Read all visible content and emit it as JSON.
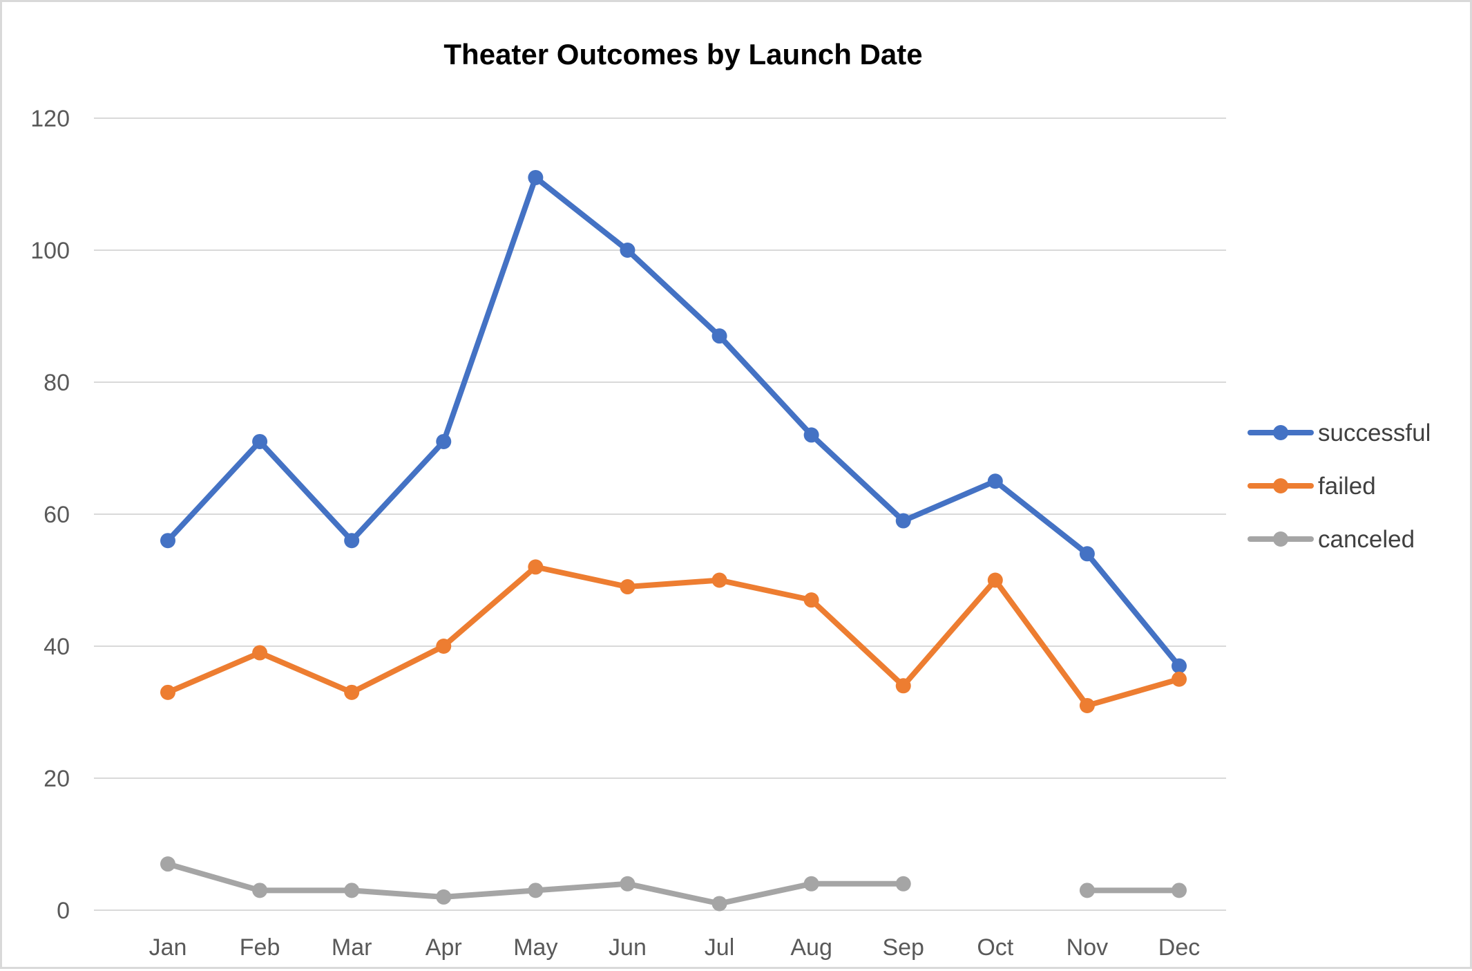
{
  "chart_data": {
    "type": "line",
    "title": "Theater Outcomes by Launch Date",
    "xlabel": "",
    "ylabel": "",
    "categories": [
      "Jan",
      "Feb",
      "Mar",
      "Apr",
      "May",
      "Jun",
      "Jul",
      "Aug",
      "Sep",
      "Oct",
      "Nov",
      "Dec"
    ],
    "ylim": [
      0,
      120
    ],
    "yticks": [
      "0",
      "20",
      "40",
      "60",
      "80",
      "100",
      "120"
    ],
    "grid": true,
    "legend_position": "right",
    "series": [
      {
        "name": "successful",
        "color": "#4472C4",
        "values": [
          56,
          71,
          56,
          71,
          111,
          100,
          87,
          72,
          59,
          65,
          54,
          37
        ]
      },
      {
        "name": "failed",
        "color": "#ED7D31",
        "values": [
          33,
          39,
          33,
          40,
          52,
          49,
          50,
          47,
          34,
          50,
          31,
          35
        ]
      },
      {
        "name": "canceled",
        "color": "#A5A5A5",
        "values": [
          7,
          3,
          3,
          2,
          3,
          4,
          1,
          4,
          4,
          null,
          3,
          3
        ]
      }
    ]
  }
}
